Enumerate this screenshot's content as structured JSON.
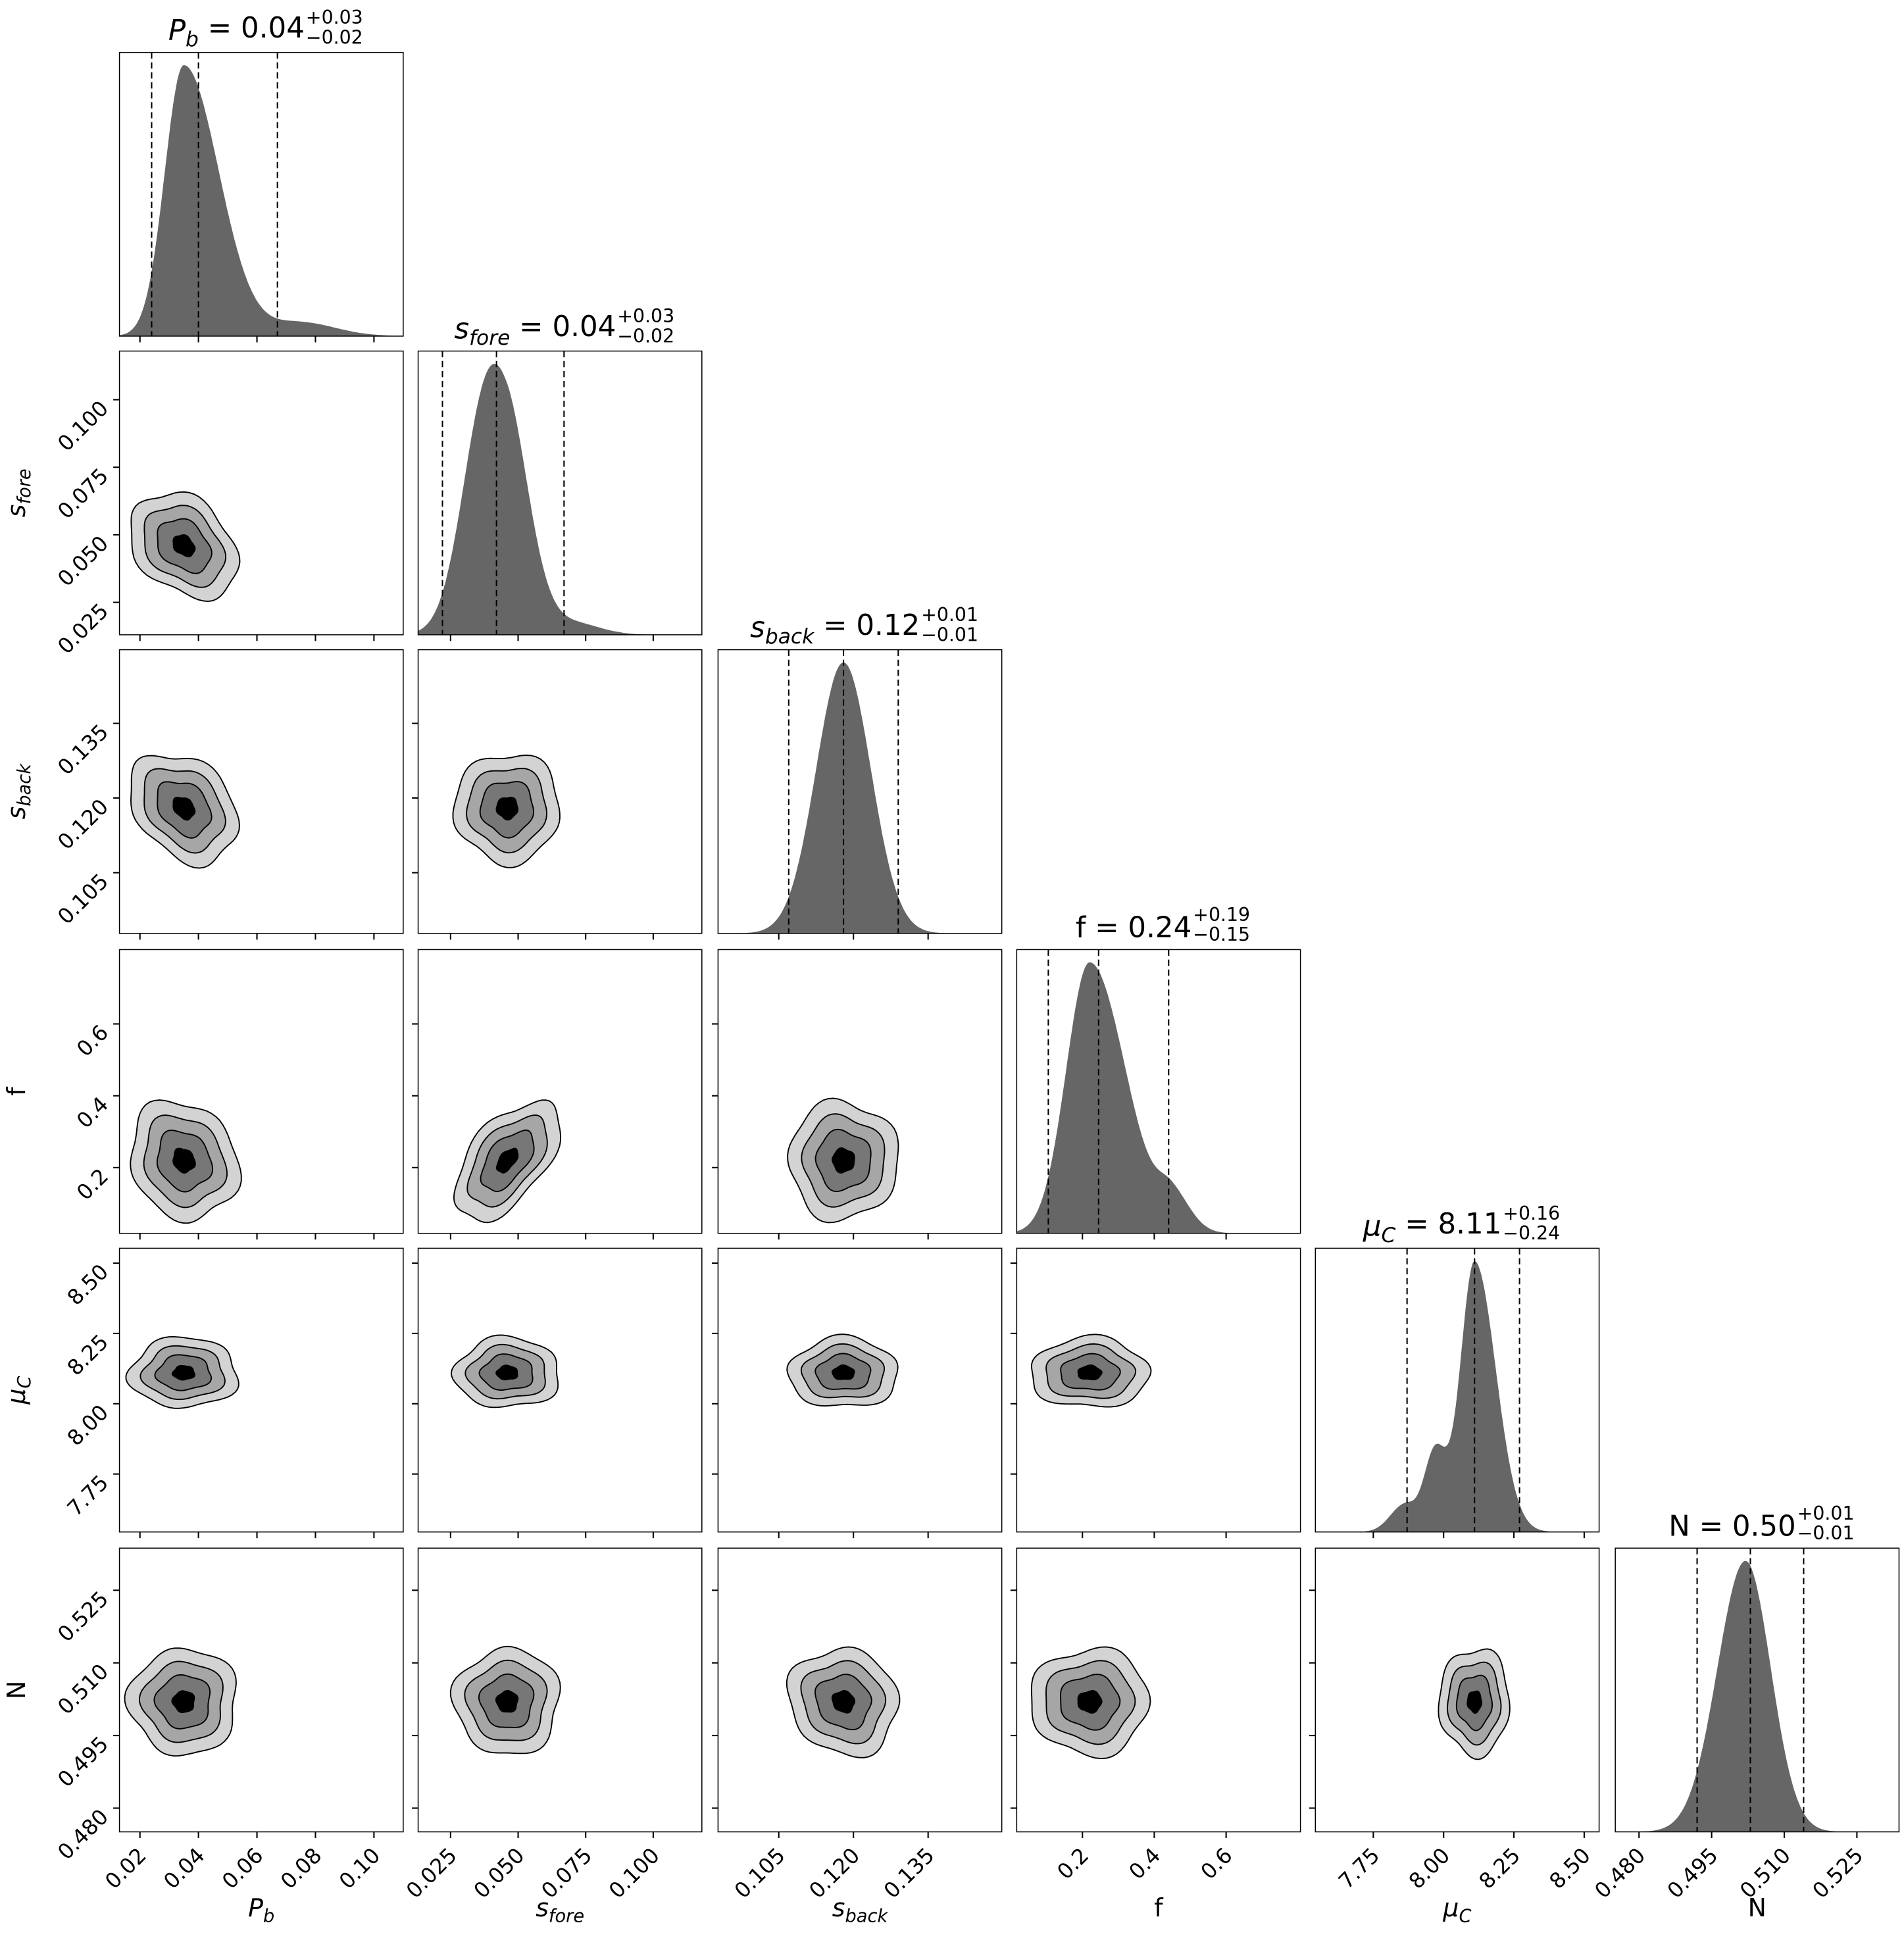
{
  "chart_data": {
    "type": "corner",
    "params": [
      {
        "key": "P_b",
        "label": {
          "base": "P",
          "sub": "b",
          "italic": true
        },
        "range": [
          0.013,
          0.11
        ],
        "ticks": [
          0.02,
          0.04,
          0.06,
          0.08,
          0.1
        ],
        "tick_labels": [
          "0.02",
          "0.04",
          "0.06",
          "0.08",
          "0.10"
        ],
        "quantiles": [
          0.024,
          0.04,
          0.067
        ],
        "title": {
          "value": "0.04",
          "plus": "+0.03",
          "minus": "−0.02"
        },
        "marginal": [
          {
            "mode": 0.035,
            "sl": 0.0065,
            "sr": 0.012,
            "w": 1
          },
          {
            "mode": 0.075,
            "sl": 0.01,
            "sr": 0.012,
            "w": 0.05
          }
        ]
      },
      {
        "key": "s_fore",
        "label": {
          "base": "s",
          "sub": "fore",
          "italic": true
        },
        "range": [
          0.013,
          0.118
        ],
        "ticks": [
          0.025,
          0.05,
          0.075,
          0.1
        ],
        "tick_labels": [
          "0.025",
          "0.050",
          "0.075",
          "0.100"
        ],
        "quantiles": [
          0.022,
          0.042,
          0.067
        ],
        "title": {
          "value": "0.04",
          "plus": "+0.03",
          "minus": "−0.02"
        },
        "marginal": [
          {
            "mode": 0.046,
            "sl": 0.011,
            "sr": 0.0085,
            "w": 1
          },
          {
            "mode": 0.036,
            "sl": 0.008,
            "sr": 0.008,
            "w": 0.55
          },
          {
            "mode": 0.07,
            "sl": 0.01,
            "sr": 0.01,
            "w": 0.06
          }
        ]
      },
      {
        "key": "s_back",
        "label": {
          "base": "s",
          "sub": "back",
          "italic": true
        },
        "range": [
          0.0928,
          0.1498
        ],
        "ticks": [
          0.105,
          0.12,
          0.135
        ],
        "tick_labels": [
          "0.105",
          "0.120",
          "0.135"
        ],
        "quantiles": [
          0.107,
          0.118,
          0.129
        ],
        "title": {
          "value": "0.12",
          "plus": "+0.01",
          "minus": "−0.01"
        },
        "marginal": [
          {
            "mode": 0.118,
            "sl": 0.0055,
            "sr": 0.0055,
            "w": 1
          }
        ]
      },
      {
        "key": "f",
        "label": {
          "base": "f",
          "sub": "",
          "italic": false
        },
        "range": [
          0.017,
          0.807
        ],
        "ticks": [
          0.2,
          0.4,
          0.6
        ],
        "tick_labels": [
          "0.2",
          "0.4",
          "0.6"
        ],
        "quantiles": [
          0.105,
          0.245,
          0.44
        ],
        "title": {
          "value": "0.24",
          "plus": "+0.19",
          "minus": "−0.15"
        },
        "marginal": [
          {
            "mode": 0.22,
            "sl": 0.065,
            "sr": 0.1,
            "w": 1
          },
          {
            "mode": 0.45,
            "sl": 0.04,
            "sr": 0.05,
            "w": 0.12
          }
        ]
      },
      {
        "key": "mu_C",
        "label": {
          "base": "μ",
          "sub": "C",
          "italic": true
        },
        "range": [
          7.544,
          8.553
        ],
        "ticks": [
          7.75,
          8.0,
          8.25,
          8.5
        ],
        "tick_labels": [
          "7.75",
          "8.00",
          "8.25",
          "8.50"
        ],
        "quantiles": [
          7.87,
          8.11,
          8.27
        ],
        "title": {
          "value": "8.11",
          "plus": "+0.16",
          "minus": "−0.24"
        },
        "marginal": [
          {
            "mode": 8.11,
            "sl": 0.05,
            "sr": 0.075,
            "w": 1
          },
          {
            "mode": 7.97,
            "sl": 0.04,
            "sr": 0.04,
            "w": 0.3
          },
          {
            "mode": 7.86,
            "sl": 0.05,
            "sr": 0.04,
            "w": 0.1
          }
        ]
      },
      {
        "key": "N",
        "label": {
          "base": "N",
          "sub": "",
          "italic": false
        },
        "range": [
          0.4751,
          0.5337
        ],
        "ticks": [
          0.48,
          0.495,
          0.51,
          0.525
        ],
        "tick_labels": [
          "0.480",
          "0.495",
          "0.510",
          "0.525"
        ],
        "quantiles": [
          0.492,
          0.503,
          0.514
        ],
        "title": {
          "value": "0.50",
          "plus": "+0.01",
          "minus": "−0.01"
        },
        "marginal": [
          {
            "mode": 0.502,
            "sl": 0.0058,
            "sr": 0.0052,
            "w": 1
          }
        ]
      }
    ],
    "correlations": {
      "0-1": -0.3,
      "0-2": -0.3,
      "0-3": -0.15,
      "0-4": 0,
      "0-5": 0,
      "1-2": 0,
      "1-3": 0.55,
      "1-4": 0,
      "1-5": 0,
      "2-3": 0,
      "2-4": 0,
      "2-5": -0.1,
      "3-4": 0,
      "3-5": 0,
      "4-5": 0
    },
    "contour_levels_sigma": [
      2.0,
      1.5,
      1.0,
      0.4
    ],
    "contour_fills": [
      "#d3d3d3",
      "#a6a6a6",
      "#777777",
      "#000000"
    ],
    "hist_color": "#666666"
  }
}
